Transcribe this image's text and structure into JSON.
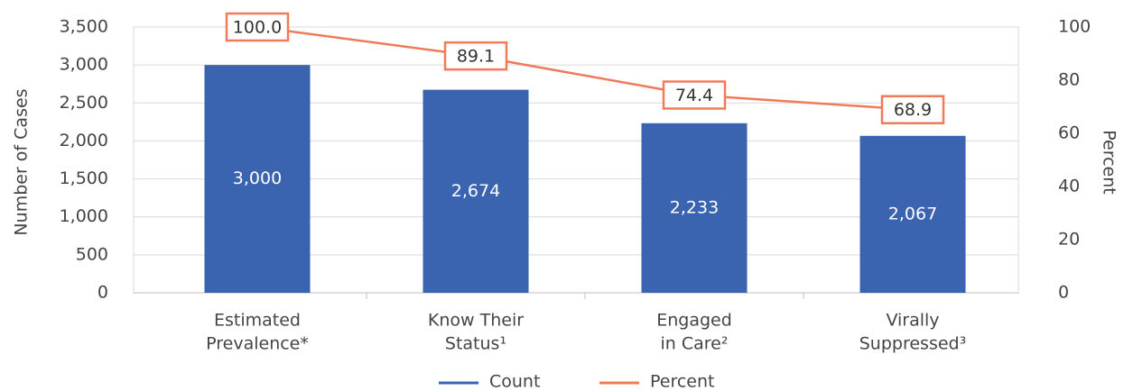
{
  "chart_data": {
    "type": "bar_line",
    "categories": [
      [
        "Estimated",
        "Prevalence*"
      ],
      [
        "Know Their",
        "Status¹"
      ],
      [
        "Engaged",
        "in Care²"
      ],
      [
        "Virally",
        "Suppressed³"
      ]
    ],
    "series": [
      {
        "name": "Count",
        "type": "bar",
        "color": "#3a63b0",
        "values": [
          3000,
          2674,
          2233,
          2067
        ],
        "value_labels": [
          "3,000",
          "2,674",
          "2,233",
          "2,067"
        ]
      },
      {
        "name": "Percent",
        "type": "line",
        "axis": "y2",
        "color": "#ef7b5b",
        "values": [
          100.0,
          89.1,
          74.4,
          68.9
        ],
        "value_labels": [
          "100.0",
          "89.1",
          "74.4",
          "68.9"
        ]
      }
    ],
    "ylabel": "Number of Cases",
    "y2label": "Percent",
    "ylim": [
      0,
      3500
    ],
    "yticks": [
      0,
      500,
      {
        "value": 1000,
        "label": "1,000"
      },
      {
        "value": 1500,
        "label": "1,500"
      },
      {
        "value": 2000,
        "label": "2,000"
      },
      {
        "value": 2500,
        "label": "2,500"
      },
      {
        "value": 3000,
        "label": "3,000"
      },
      {
        "value": 3500,
        "label": "3,500"
      }
    ],
    "y2lim": [
      0,
      100
    ],
    "y2ticks": [
      0,
      20,
      40,
      60,
      80,
      100
    ],
    "grid": true,
    "legend": "bottom"
  }
}
